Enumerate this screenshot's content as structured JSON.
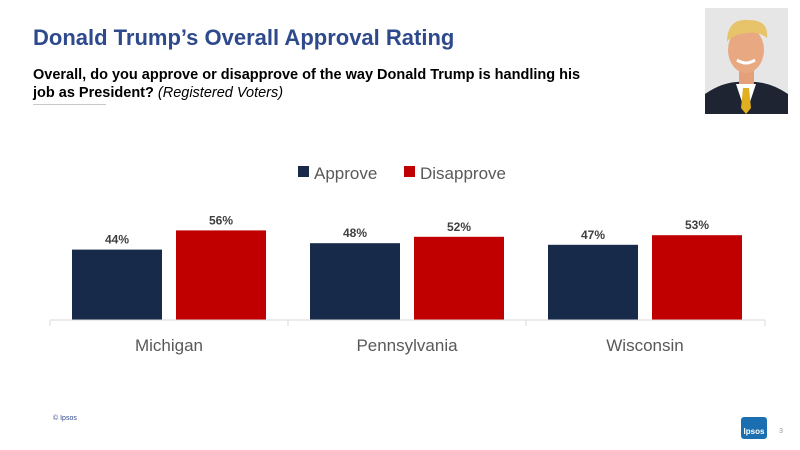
{
  "slide": {
    "title": "Donald Trump’s Overall Approval Rating",
    "question": "Overall, do you approve or disapprove of the way Donald Trump is handling his job as President?",
    "question_note": "(Registered Voters)",
    "footer": "© Ipsos",
    "page_number": "3",
    "logo_text": "Ipsos"
  },
  "colors": {
    "approve": "#172a4a",
    "disapprove": "#c00000"
  },
  "chart_data": {
    "type": "bar",
    "categories": [
      "Michigan",
      "Pennsylvania",
      "Wisconsin"
    ],
    "series": [
      {
        "name": "Approve",
        "values": [
          44,
          48,
          47
        ],
        "labels": [
          "44%",
          "48%",
          "47%"
        ]
      },
      {
        "name": "Disapprove",
        "values": [
          56,
          52,
          53
        ],
        "labels": [
          "56%",
          "52%",
          "53%"
        ]
      }
    ],
    "ylim": [
      0,
      100
    ],
    "legend_position": "top",
    "grid": false,
    "title": "",
    "xlabel": "",
    "ylabel": ""
  }
}
